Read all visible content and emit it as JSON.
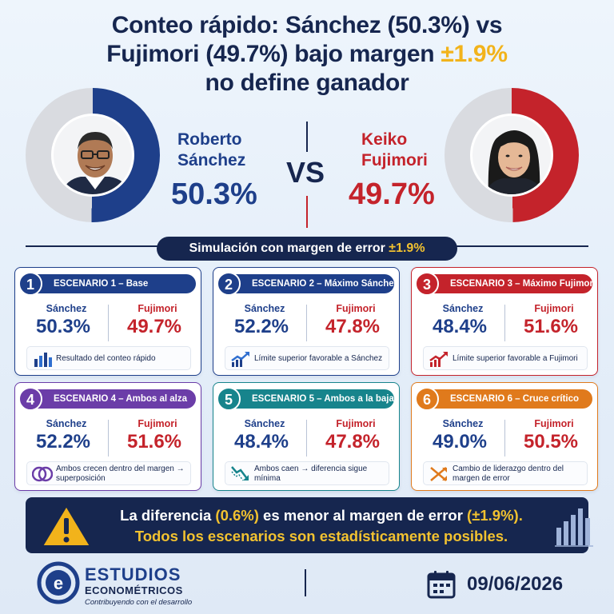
{
  "title": {
    "line1": "Conteo rápido: Sánchez (50.3%) vs",
    "line2_pre": "Fujimori (49.7%) bajo margen ",
    "line2_hl": "±1.9%",
    "line3": "no define ganador"
  },
  "candidates": {
    "left": {
      "first": "Roberto",
      "last": "Sánchez",
      "pct": "50.3%",
      "share": 0.503,
      "color": "#1e3f8a"
    },
    "right": {
      "first": "Keiko",
      "last": "Fujimori",
      "pct": "49.7%",
      "share": 0.497,
      "color": "#c4232b"
    },
    "vs": "VS"
  },
  "simulation": {
    "label": "Simulación con margen de error ",
    "margin": "±1.9%"
  },
  "scenarios": [
    {
      "num": "1",
      "title": "ESCENARIO 1 – Base",
      "s_label": "Sánchez",
      "s_val": "50.3%",
      "f_label": "Fujimori",
      "f_val": "49.7%",
      "note": "Resultado del conteo rápido",
      "icon": "bar-chart-icon"
    },
    {
      "num": "2",
      "title": "ESCENARIO 2 – Máximo Sánchez",
      "s_label": "Sánchez",
      "s_val": "52.2%",
      "f_label": "Fujimori",
      "f_val": "47.8%",
      "note": "Límite superior favorable a Sánchez",
      "icon": "trend-up-icon"
    },
    {
      "num": "3",
      "title": "ESCENARIO 3 – Máximo Fujimori",
      "s_label": "Sánchez",
      "s_val": "48.4%",
      "f_label": "Fujimori",
      "f_val": "51.6%",
      "note": "Límite superior favorable a Fujimori",
      "icon": "trend-up-icon"
    },
    {
      "num": "4",
      "title": "ESCENARIO 4 – Ambos al alza",
      "s_label": "Sánchez",
      "s_val": "52.2%",
      "f_label": "Fujimori",
      "f_val": "51.6%",
      "note": "Ambos crecen dentro del margen → superposición",
      "icon": "overlap-circles-icon"
    },
    {
      "num": "5",
      "title": "ESCENARIO 5 – Ambos a la baja",
      "s_label": "Sánchez",
      "s_val": "48.4%",
      "f_label": "Fujimori",
      "f_val": "47.8%",
      "note": "Ambos caen → diferencia sigue mínima",
      "icon": "trend-down-icon"
    },
    {
      "num": "6",
      "title": "ESCENARIO 6 – Cruce crítico",
      "s_label": "Sánchez",
      "s_val": "49.0%",
      "f_label": "Fujimori",
      "f_val": "50.5%",
      "note": "Cambio de liderazgo dentro del margen de error",
      "icon": "cross-arrows-icon"
    }
  ],
  "alert": {
    "l1_a": "La diferencia ",
    "l1_b": "(0.6%)",
    "l1_c": " es menor al margen de error ",
    "l1_d": "(±1.9%).",
    "l2": "Todos los escenarios son estadísticamente posibles."
  },
  "footer": {
    "brand": "ESTUDIOS",
    "brand_sub": "ECONOMÉTRICOS",
    "tagline": "Contribuyendo con el desarrollo",
    "date": "09/06/2026"
  },
  "colors": {
    "navy": "#16264f",
    "blue": "#1e3f8a",
    "red": "#c4232b",
    "purple": "#6b3da8",
    "teal": "#17848c",
    "orange": "#e07a1c",
    "gold": "#f2b31b"
  }
}
